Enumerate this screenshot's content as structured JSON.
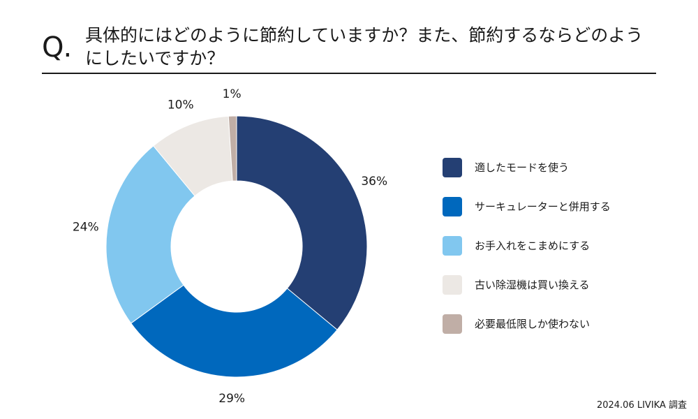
{
  "header": {
    "q_mark": "Q.",
    "question": "具体的にはどのように節約していますか？また、節約するならどのようにしたいですか？"
  },
  "chart_data": {
    "type": "pie",
    "donut": true,
    "start_angle_deg": 0,
    "direction": "clockwise",
    "slices": [
      {
        "label": "適したモードを使う",
        "value": 36,
        "value_label": "36%",
        "color": "#243f73"
      },
      {
        "label": "サーキュレーターと併用する",
        "value": 29,
        "value_label": "29%",
        "color": "#0068bd"
      },
      {
        "label": "お手入れをこまめにする",
        "value": 24,
        "value_label": "24%",
        "color": "#81c7ef"
      },
      {
        "label": "古い除湿機は買い換える",
        "value": 10,
        "value_label": "10%",
        "color": "#ece8e4"
      },
      {
        "label": "必要最低限しか使わない",
        "value": 1,
        "value_label": "1%",
        "color": "#c0aea6"
      }
    ],
    "legend_position": "right"
  },
  "footer": {
    "source": "2024.06 LIVIKA 調査"
  }
}
